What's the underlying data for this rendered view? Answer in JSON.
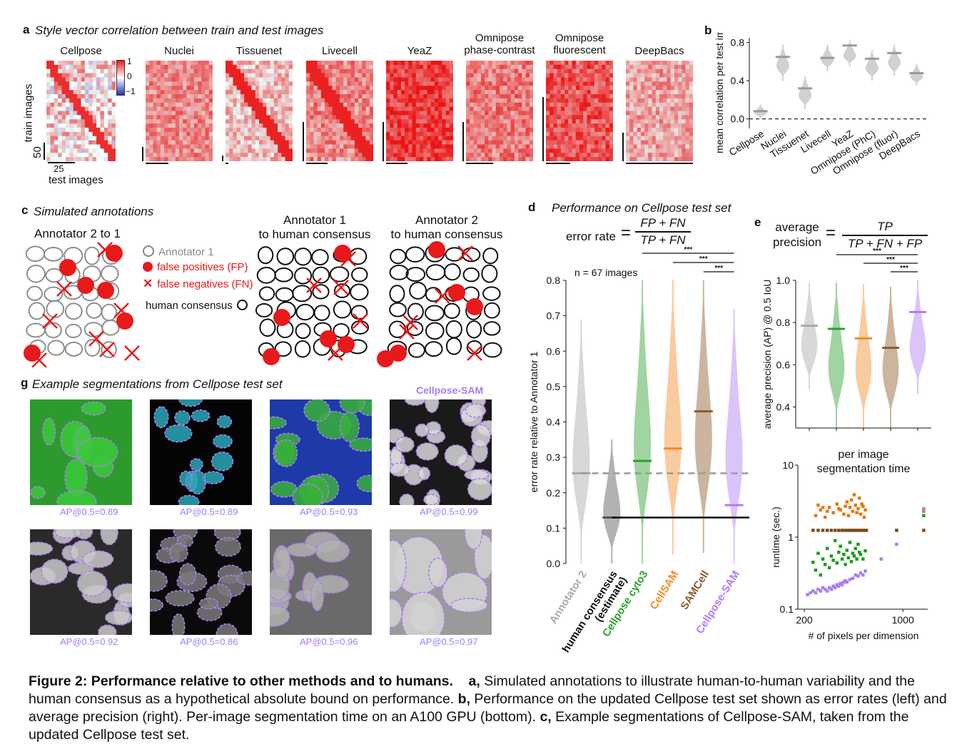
{
  "panel_a": {
    "letter": "a",
    "title": "Style vector correlation between train and test images",
    "heatmaps": [
      {
        "label": "Cellpose"
      },
      {
        "label": "Nuclei"
      },
      {
        "label": "Tissuenet"
      },
      {
        "label": "Livecell"
      },
      {
        "label": "YeaZ"
      },
      {
        "label": "Omnipose phase-contrast",
        "line1": "Omnipose",
        "line2": "phase-contrast"
      },
      {
        "label": "Omnipose fluorescent",
        "line1": "Omnipose",
        "line2": "fluorescent"
      },
      {
        "label": "DeepBacs"
      }
    ],
    "colorbar_ticks": [
      "1",
      "0",
      "−1"
    ],
    "ylabel": "train images",
    "xlabel": "test images",
    "scale_y": "50",
    "scale_x": "25"
  },
  "panel_b": {
    "letter": "b"
  },
  "panel_c": {
    "letter": "c",
    "title": "Simulated annotations",
    "sub1": "Annotator 2 to 1",
    "sub2_line1": "Annotator 1",
    "sub2_line2": "to human consensus",
    "sub3_line1": "Annotator 2",
    "sub3_line2": "to human consensus",
    "legend": [
      {
        "label": "Annotator 1",
        "color": "#888888"
      },
      {
        "label": "false positives (FP)",
        "color": "#e8191b"
      },
      {
        "label": "false negatives (FN)",
        "color": "#e8191b"
      },
      {
        "label": "human consensus",
        "color": "#111111"
      }
    ]
  },
  "panel_d": {
    "letter": "d",
    "title": "Performance on Cellpose test set",
    "formula_lhs": "error rate",
    "formula_num": "FP + FN",
    "formula_den": "TP + FN"
  },
  "panel_e": {
    "letter": "e",
    "formula_lhs1": "average",
    "formula_lhs2": "precision",
    "formula_num": "TP",
    "formula_den": "TP + FN + FP"
  },
  "panel_g": {
    "letter": "g",
    "title": "Example segmentations from Cellpose test set",
    "method": "Cellpose-SAM",
    "ap_values": [
      "AP@0.5=0.89",
      "AP@0.5=0.89",
      "AP@0.5=0.93",
      "AP@0.5=0.99",
      "AP@0.5=0.92",
      "AP@0.5=0.86",
      "AP@0.5=0.96",
      "AP@0.5=0.97"
    ]
  },
  "caption": {
    "bold": "Figure 2: Performance relative to other methods and to humans.",
    "a_label": "a,",
    "a_text": "Simulated annotations to illustrate human-to-human variability and the human consensus as a hypothetical absolute bound on performance.",
    "b_label": "b,",
    "b_text": "Performance on the updated Cellpose test set shown as error rates (left) and average precision (right). Per-image segmentation time on an A100 GPU (bottom).",
    "c_label": "c,",
    "c_text": "Example segmentations of Cellpose-SAM, taken from the updated Cellpose test set."
  },
  "chart_data": [
    {
      "id": "b",
      "type": "violin",
      "ylabel": "mean correlation per test image",
      "ylim": [
        -0.1,
        0.85
      ],
      "yticks": [
        0.0,
        0.4,
        0.8
      ],
      "reference_line": 0.0,
      "categories": [
        "Cellpose",
        "Nuclei",
        "Tissuenet",
        "Livecell",
        "YeaZ",
        "Omnipose (PhC)",
        "Omnipose (fluor)",
        "DeepBacs"
      ],
      "medians": [
        0.08,
        0.65,
        0.32,
        0.64,
        0.77,
        0.63,
        0.69,
        0.48
      ],
      "ranges": [
        [
          0.0,
          0.15
        ],
        [
          0.4,
          0.78
        ],
        [
          0.1,
          0.45
        ],
        [
          0.5,
          0.78
        ],
        [
          0.55,
          0.82
        ],
        [
          0.4,
          0.72
        ],
        [
          0.45,
          0.78
        ],
        [
          0.35,
          0.58
        ]
      ]
    },
    {
      "id": "d",
      "type": "violin",
      "ylabel": "error rate relative to Annotator 1",
      "ylim": [
        0.0,
        0.8
      ],
      "yticks": [
        0.0,
        0.1,
        0.2,
        0.3,
        0.4,
        0.5,
        0.6,
        0.7,
        0.8
      ],
      "annotation": "n = 67 images",
      "significance": "***",
      "categories": [
        "Annotator 2",
        "human consensus (estimate)",
        "Cellpose cyto3",
        "CellSAM",
        "SAMCell",
        "Cellpose-SAM"
      ],
      "category_lines": [
        [
          "Annotator 2"
        ],
        [
          "human consensus",
          "(estimate)"
        ],
        [
          "Cellpose cyto3"
        ],
        [
          "CellSAM"
        ],
        [
          "SAMCell"
        ],
        [
          "Cellpose-SAM"
        ]
      ],
      "colors": [
        "#a9a9a9",
        "#555555",
        "#2ca02c",
        "#f28c28",
        "#8b5a2b",
        "#b07cf2"
      ],
      "medians": [
        0.255,
        0.13,
        0.29,
        0.325,
        0.43,
        0.165
      ],
      "ranges": [
        [
          0.0,
          0.69
        ],
        [
          0.0,
          0.35
        ],
        [
          0.0,
          0.8
        ],
        [
          0.025,
          0.8
        ],
        [
          0.03,
          0.8
        ],
        [
          0.0,
          0.72
        ]
      ],
      "hlines": [
        0.255,
        0.13
      ]
    },
    {
      "id": "e",
      "type": "violin",
      "ylabel": "average precision (AP) @ 0.5 IoU",
      "ylim": [
        0.3,
        1.0
      ],
      "yticks": [
        0.4,
        0.6,
        0.8,
        1.0
      ],
      "significance": "***",
      "categories": [
        "Annotator 2",
        "Cellpose cyto3",
        "CellSAM",
        "SAMCell",
        "Cellpose-SAM"
      ],
      "colors": [
        "#a9a9a9",
        "#2ca02c",
        "#f28c28",
        "#8b5a2b",
        "#b07cf2"
      ],
      "medians": [
        0.785,
        0.77,
        0.725,
        0.68,
        0.85
      ],
      "ranges": [
        [
          0.48,
          0.99
        ],
        [
          0.3,
          0.99
        ],
        [
          0.3,
          0.98
        ],
        [
          0.3,
          0.97
        ],
        [
          0.46,
          1.0
        ]
      ]
    },
    {
      "id": "f",
      "type": "scatter",
      "title": "per image segmentation time",
      "title_line1": "per image",
      "title_line2": "segmentation time",
      "xlabel": "# of pixels per dimension",
      "ylabel": "runtime (sec.)",
      "xscale": "log",
      "yscale": "log",
      "xlim": [
        180,
        1500
      ],
      "ylim": [
        0.1,
        10
      ],
      "xticks": [
        200,
        1000
      ],
      "yticks": [
        0.1,
        1,
        10
      ],
      "series": [
        {
          "name": "CellSAM",
          "color": "#e07b14",
          "points": [
            [
              240,
              2.0
            ],
            [
              260,
              2.4
            ],
            [
              280,
              1.9
            ],
            [
              300,
              2.6
            ],
            [
              320,
              2.2
            ],
            [
              340,
              2.9
            ],
            [
              360,
              2.4
            ],
            [
              380,
              2.1
            ],
            [
              400,
              3.1
            ],
            [
              420,
              2.6
            ],
            [
              440,
              2.3
            ],
            [
              460,
              2.8
            ],
            [
              480,
              2.5
            ],
            [
              500,
              2.1
            ],
            [
              520,
              2.7
            ],
            [
              540,
              2.4
            ],
            [
              270,
              2.6
            ],
            [
              290,
              2.3
            ],
            [
              410,
              2.0
            ],
            [
              430,
              3.3
            ],
            [
              470,
              2.2
            ],
            [
              490,
              3.5
            ],
            [
              510,
              2.9
            ],
            [
              530,
              1.9
            ],
            [
              250,
              2.8
            ],
            [
              350,
              2.5
            ],
            [
              390,
              2.7
            ],
            [
              450,
              3.9
            ],
            [
              1400,
              2.3
            ]
          ]
        },
        {
          "name": "SAMCell",
          "color": "#7a4a1b",
          "points": [
            [
              230,
              1.25
            ],
            [
              250,
              1.25
            ],
            [
              270,
              1.25
            ],
            [
              290,
              1.25
            ],
            [
              310,
              1.25
            ],
            [
              330,
              1.25
            ],
            [
              350,
              1.25
            ],
            [
              370,
              1.25
            ],
            [
              390,
              1.25
            ],
            [
              410,
              1.25
            ],
            [
              430,
              1.25
            ],
            [
              450,
              1.25
            ],
            [
              470,
              1.25
            ],
            [
              490,
              1.25
            ],
            [
              510,
              1.25
            ],
            [
              530,
              1.25
            ],
            [
              550,
              1.25
            ],
            [
              900,
              1.25
            ],
            [
              1400,
              1.25
            ]
          ]
        },
        {
          "name": "Cellpose cyto3",
          "color": "#1f9a1f",
          "points": [
            [
              230,
              0.45
            ],
            [
              240,
              0.35
            ],
            [
              250,
              0.6
            ],
            [
              260,
              0.3
            ],
            [
              270,
              0.5
            ],
            [
              280,
              0.42
            ],
            [
              290,
              0.7
            ],
            [
              300,
              0.38
            ],
            [
              310,
              0.55
            ],
            [
              320,
              0.48
            ],
            [
              330,
              0.9
            ],
            [
              340,
              0.44
            ],
            [
              350,
              0.62
            ],
            [
              360,
              0.75
            ],
            [
              370,
              0.5
            ],
            [
              380,
              0.58
            ],
            [
              390,
              0.42
            ],
            [
              400,
              0.66
            ],
            [
              410,
              0.52
            ],
            [
              420,
              0.85
            ],
            [
              430,
              0.46
            ],
            [
              440,
              0.6
            ],
            [
              450,
              0.55
            ],
            [
              460,
              0.7
            ],
            [
              470,
              0.5
            ],
            [
              480,
              0.8
            ],
            [
              490,
              0.62
            ],
            [
              500,
              0.58
            ],
            [
              520,
              0.5
            ],
            [
              540,
              0.65
            ],
            [
              1400,
              2.0
            ]
          ]
        },
        {
          "name": "Cellpose-SAM",
          "color": "#a77ff0",
          "points": [
            [
              210,
              0.16
            ],
            [
              220,
              0.17
            ],
            [
              230,
              0.18
            ],
            [
              240,
              0.17
            ],
            [
              250,
              0.19
            ],
            [
              260,
              0.18
            ],
            [
              270,
              0.2
            ],
            [
              280,
              0.19
            ],
            [
              290,
              0.18
            ],
            [
              300,
              0.2
            ],
            [
              310,
              0.19
            ],
            [
              320,
              0.21
            ],
            [
              330,
              0.2
            ],
            [
              340,
              0.22
            ],
            [
              350,
              0.21
            ],
            [
              360,
              0.23
            ],
            [
              370,
              0.22
            ],
            [
              380,
              0.24
            ],
            [
              390,
              0.25
            ],
            [
              400,
              0.24
            ],
            [
              420,
              0.26
            ],
            [
              440,
              0.27
            ],
            [
              460,
              0.3
            ],
            [
              480,
              0.29
            ],
            [
              500,
              0.32
            ],
            [
              520,
              0.3
            ],
            [
              540,
              0.34
            ],
            [
              700,
              0.5
            ],
            [
              900,
              0.8
            ],
            [
              1400,
              2.5
            ]
          ]
        }
      ]
    }
  ]
}
